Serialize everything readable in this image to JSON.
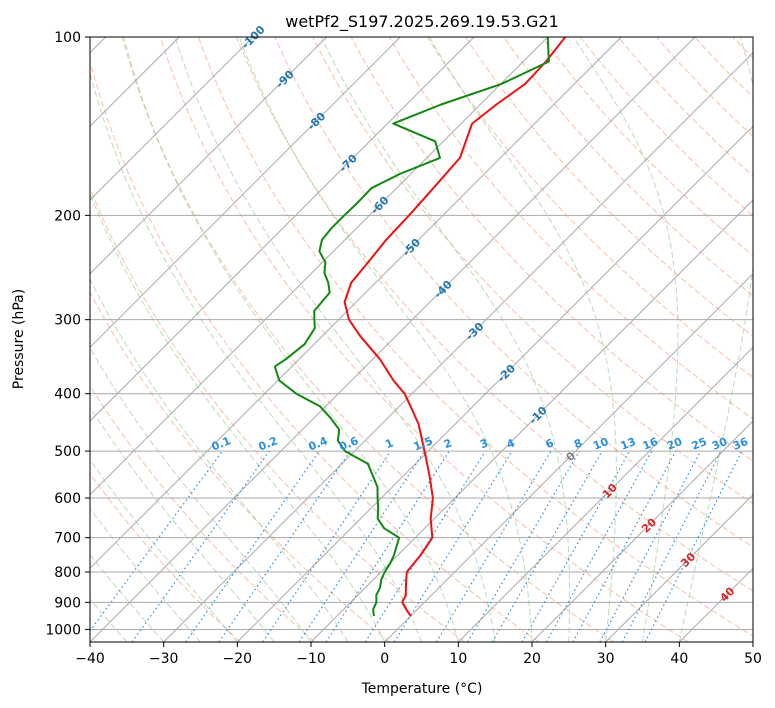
{
  "chart_data": {
    "type": "line",
    "subtype": "skew-t log-p diagram",
    "title": "wetPf2_S197.2025.269.19.53.G21",
    "xlabel": "Temperature (°C)",
    "ylabel": "Pressure (hPa)",
    "xlim": [
      -40,
      50
    ],
    "ylim": [
      1050,
      100
    ],
    "y_scale": "log",
    "grid": true,
    "x_ticks": [
      -40,
      -30,
      -20,
      -10,
      0,
      10,
      20,
      30,
      40,
      50
    ],
    "x_tick_labels": [
      "−40",
      "−30",
      "−20",
      "−10",
      "0",
      "10",
      "20",
      "30",
      "40",
      "50"
    ],
    "y_ticks": [
      1000,
      900,
      800,
      700,
      600,
      500,
      400,
      300,
      200,
      100
    ],
    "y_tick_labels": [
      "1000",
      "900",
      "800",
      "700",
      "600",
      "500",
      "400",
      "300",
      "200",
      "100"
    ],
    "series": [
      {
        "role": "temperature",
        "color": "#ee1111",
        "values_pressure": [
          949,
          925,
          900,
          875,
          850,
          825,
          800,
          775,
          750,
          730,
          700,
          650,
          600,
          550,
          500,
          450,
          420,
          400,
          380,
          350,
          320,
          300,
          280,
          260,
          240,
          220,
          200,
          180,
          160,
          140,
          130,
          120,
          110,
          100
        ],
        "values_temp": [
          0.0,
          -1.5,
          -3.0,
          -3.5,
          -4.5,
          -5.5,
          -6.5,
          -6.7,
          -6.9,
          -7.2,
          -7.7,
          -10.5,
          -13.0,
          -16.5,
          -20.5,
          -25.0,
          -28.5,
          -31.0,
          -34.3,
          -39.0,
          -44.8,
          -48.6,
          -51.6,
          -53.3,
          -53.8,
          -54.4,
          -54.6,
          -55.0,
          -55.5,
          -58.5,
          -57.8,
          -56.7,
          -56.9,
          -57.6
        ]
      },
      {
        "role": "dewpoint",
        "color": "#118811",
        "values_pressure": [
          949,
          925,
          900,
          875,
          850,
          825,
          800,
          775,
          750,
          720,
          700,
          675,
          650,
          625,
          600,
          575,
          550,
          525,
          500,
          480,
          460,
          440,
          420,
          400,
          380,
          360,
          350,
          330,
          310,
          300,
          290,
          270,
          260,
          250,
          240,
          230,
          220,
          210,
          200,
          190,
          180,
          170,
          160,
          150,
          140,
          130,
          120,
          110,
          100
        ],
        "values_temp": [
          -5.0,
          -6.0,
          -6.5,
          -7.5,
          -8.0,
          -8.9,
          -9.5,
          -9.9,
          -10.5,
          -11.5,
          -12.2,
          -15.5,
          -17.7,
          -19.0,
          -20.5,
          -22.0,
          -24.2,
          -26.5,
          -31.3,
          -33.7,
          -35.0,
          -37.7,
          -40.8,
          -45.7,
          -49.8,
          -52.3,
          -51.8,
          -51.3,
          -52.1,
          -53.3,
          -54.5,
          -54.9,
          -56.4,
          -58.3,
          -59.6,
          -61.9,
          -63.1,
          -63.4,
          -63.4,
          -63.3,
          -63.4,
          -61.4,
          -58.2,
          -61.1,
          -69.2,
          -65.3,
          -59.9,
          -56.5,
          -60.0
        ]
      }
    ],
    "isopleth_labels": {
      "saturation_mixing_ratio_gkg": [
        "0.1",
        "0.2",
        "0.4",
        "0.6",
        "1",
        "1.5",
        "2",
        "3",
        "4",
        "6",
        "8",
        "10",
        "13",
        "16",
        "20",
        "25",
        "30",
        "36"
      ],
      "temperature_c": [
        "-100",
        "-90",
        "-80",
        "-70",
        "-60",
        "-50",
        "-40",
        "-30",
        "-20",
        "-10",
        "0",
        "10",
        "20",
        "30",
        "40"
      ]
    },
    "colors": {
      "dry_adiabat": "#f4a582",
      "moist_adiabat": "#7fbf7f",
      "mixing_ratio": "#2b8fe0",
      "isotherm_cold_label": "#1f77b4",
      "isotherm_warm_label": "#d62728",
      "isotherm_zero_label": "#808080"
    }
  }
}
